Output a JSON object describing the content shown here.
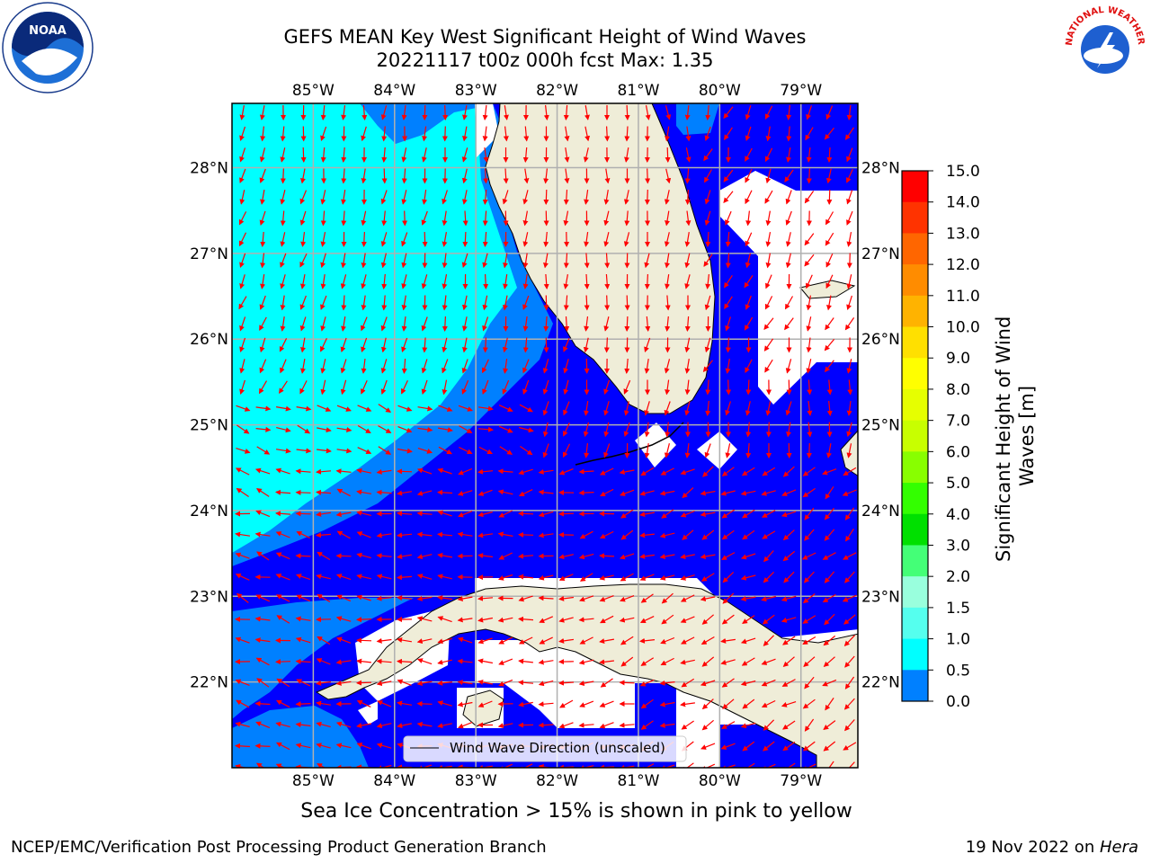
{
  "header": {
    "title_line1": "GEFS MEAN Key West Significant Height of Wind Waves",
    "title_line2": "20221117 t00z 000h fcst   Max: 1.35"
  },
  "logos": {
    "noaa_icon": "noaa-logo-icon",
    "noaa_text": "NOAA",
    "nws_icon": "nws-logo-icon",
    "nws_text": "NATIONAL WEATHER SERVICE"
  },
  "map": {
    "lon_ticks": [
      "85°W",
      "84°W",
      "83°W",
      "82°W",
      "81°W",
      "80°W",
      "79°W"
    ],
    "lat_ticks": [
      "28°N",
      "27°N",
      "26°N",
      "25°N",
      "24°N",
      "23°N",
      "22°N"
    ],
    "lon_values": [
      -85,
      -84,
      -83,
      -82,
      -81,
      -80,
      -79
    ],
    "lat_values": [
      28,
      27,
      26,
      25,
      24,
      23,
      22
    ],
    "extent": {
      "lon_min": -86,
      "lon_max": -78.3,
      "lat_min": 21.0,
      "lat_max": 28.75
    },
    "legend_label": "Wind Wave Direction (unscaled)",
    "colors": {
      "ocean_low": "#0000ff",
      "ocean_mid": "#0080ff",
      "ocean_high": "#00ffff",
      "land": "#efedd8",
      "arrow": "#ff0000",
      "grid": "#b0b0b0"
    }
  },
  "colorbar": {
    "label": "Significant Height of Wind Waves [m]",
    "label_line1": "Significant Height of Wind",
    "label_line2": "Waves [m]",
    "ticks": [
      "15.0",
      "14.0",
      "13.0",
      "12.0",
      "11.0",
      "10.0",
      "9.0",
      "8.0",
      "7.0",
      "6.0",
      "5.0",
      "4.0",
      "3.0",
      "2.0",
      "1.5",
      "1.0",
      "0.5",
      "0.0"
    ],
    "colors": [
      "#ff0000",
      "#ff3300",
      "#ff6600",
      "#ff8c00",
      "#ffb300",
      "#ffe000",
      "#ffff00",
      "#e6ff00",
      "#c8ff00",
      "#88ff00",
      "#33ff00",
      "#00e000",
      "#44ff77",
      "#99ffdd",
      "#55ffee",
      "#00ffff",
      "#0080ff",
      "#0000ff"
    ]
  },
  "chart_data": {
    "type": "heatmap",
    "title": "GEFS MEAN Key West Significant Height of Wind Waves",
    "subtitle": "20221117 t00z 000h fcst   Max: 1.35",
    "max_value": 1.35,
    "colorbar_label": "Significant Height of Wind Waves [m]",
    "colorbar_ticks": [
      0.0,
      0.5,
      1.0,
      1.5,
      2.0,
      3.0,
      4.0,
      5.0,
      6.0,
      7.0,
      8.0,
      9.0,
      10.0,
      11.0,
      12.0,
      13.0,
      14.0,
      15.0
    ],
    "xlim": [
      -86,
      -78.3
    ],
    "ylim": [
      21.0,
      28.75
    ],
    "xlabel": "",
    "ylabel": "",
    "grid": true,
    "legend": {
      "entries": [
        "Wind Wave Direction (unscaled)"
      ],
      "placement": "bottom-center"
    }
  },
  "footer": {
    "subcaption": "Sea Ice Concentration > 15% is shown in pink to yellow",
    "left": "NCEP/EMC/Verification Post Processing Product Generation Branch",
    "right_date": "19 Nov 2022 on ",
    "right_host": "Hera"
  }
}
